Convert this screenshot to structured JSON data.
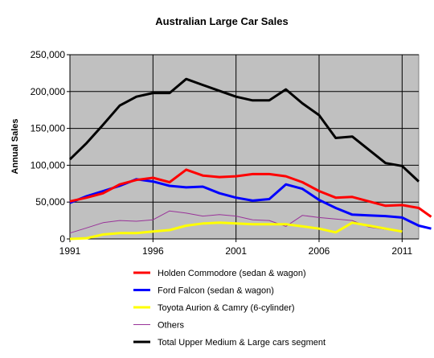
{
  "chart_data": {
    "type": "line",
    "title": "Australian Large Car Sales",
    "xlabel": "",
    "ylabel": "Annual Sales",
    "xlim": [
      1991,
      2012
    ],
    "ylim": [
      0,
      250000
    ],
    "x_ticks": [
      1991,
      1996,
      2001,
      2006,
      2011
    ],
    "y_ticks": [
      0,
      50000,
      100000,
      150000,
      200000,
      250000
    ],
    "x_tick_labels": [
      "1991",
      "1996",
      "2001",
      "2006",
      "2011"
    ],
    "y_tick_labels": [
      "0",
      "50,000",
      "100,000",
      "150,000",
      "200,000",
      "250,000"
    ],
    "grid": "horizontal",
    "plot_background": "#c0c0c0",
    "legend_position": "bottom",
    "series": [
      {
        "name": "Holden Commodore (sedan & wagon)",
        "color": "#ff0000",
        "points": [
          [
            1991,
            51000
          ],
          [
            1992,
            56000
          ],
          [
            1993,
            62000
          ],
          [
            1994,
            74000
          ],
          [
            1995,
            80000
          ],
          [
            1996,
            83000
          ],
          [
            1997,
            77000
          ],
          [
            1998,
            94000
          ],
          [
            1999,
            86000
          ],
          [
            2000,
            84000
          ],
          [
            2001,
            85000
          ],
          [
            2002,
            88000
          ],
          [
            2003,
            88000
          ],
          [
            2004,
            85000
          ],
          [
            2005,
            77000
          ],
          [
            2006,
            65000
          ],
          [
            2007,
            56000
          ],
          [
            2008,
            57000
          ],
          [
            2009,
            51000
          ],
          [
            2010,
            45000
          ],
          [
            2011,
            46000
          ],
          [
            2012,
            42000
          ],
          [
            2012.75,
            30000
          ]
        ]
      },
      {
        "name": "Ford Falcon (sedan & wagon)",
        "color": "#0000ff",
        "points": [
          [
            1991,
            49000
          ],
          [
            1992,
            58000
          ],
          [
            1993,
            65000
          ],
          [
            1994,
            72000
          ],
          [
            1995,
            81000
          ],
          [
            1996,
            78000
          ],
          [
            1997,
            72000
          ],
          [
            1998,
            70000
          ],
          [
            1999,
            71000
          ],
          [
            2000,
            62000
          ],
          [
            2001,
            56000
          ],
          [
            2002,
            52000
          ],
          [
            2003,
            54000
          ],
          [
            2004,
            74000
          ],
          [
            2005,
            68000
          ],
          [
            2006,
            53000
          ],
          [
            2007,
            42000
          ],
          [
            2008,
            33000
          ],
          [
            2009,
            32000
          ],
          [
            2010,
            31000
          ],
          [
            2011,
            29000
          ],
          [
            2012,
            18000
          ],
          [
            2012.75,
            14000
          ]
        ]
      },
      {
        "name": "Toyota Aurion & Camry (6-cylinder)",
        "color": "#ffff00",
        "points": [
          [
            1991,
            0
          ],
          [
            1992,
            1000
          ],
          [
            1993,
            6000
          ],
          [
            1994,
            8000
          ],
          [
            1995,
            8000
          ],
          [
            1996,
            10000
          ],
          [
            1997,
            12000
          ],
          [
            1998,
            18000
          ],
          [
            1999,
            21000
          ],
          [
            2000,
            22000
          ],
          [
            2001,
            21000
          ],
          [
            2002,
            20000
          ],
          [
            2003,
            20000
          ],
          [
            2004,
            20000
          ],
          [
            2005,
            17000
          ],
          [
            2006,
            14000
          ],
          [
            2007,
            9000
          ],
          [
            2008,
            22000
          ],
          [
            2009,
            18000
          ],
          [
            2010,
            14000
          ],
          [
            2011,
            10000
          ]
        ]
      },
      {
        "name": "Others",
        "color": "#993399",
        "points": [
          [
            1991,
            8000
          ],
          [
            1992,
            15000
          ],
          [
            1993,
            22000
          ],
          [
            1994,
            25000
          ],
          [
            1995,
            24000
          ],
          [
            1996,
            26000
          ],
          [
            1997,
            38000
          ],
          [
            1998,
            35000
          ],
          [
            1999,
            31000
          ],
          [
            2000,
            33000
          ],
          [
            2001,
            31000
          ],
          [
            2002,
            26000
          ],
          [
            2003,
            25000
          ],
          [
            2004,
            17000
          ],
          [
            2005,
            32000
          ],
          [
            2006,
            29000
          ],
          [
            2007,
            27000
          ],
          [
            2008,
            25000
          ],
          [
            2009,
            16000
          ],
          [
            2010,
            13000
          ],
          [
            2011,
            11000
          ]
        ]
      },
      {
        "name": "Total Upper Medium & Large cars segment",
        "color": "#000000",
        "points": [
          [
            1991,
            108000
          ],
          [
            1992,
            130000
          ],
          [
            1993,
            155000
          ],
          [
            1994,
            181000
          ],
          [
            1995,
            193000
          ],
          [
            1996,
            198000
          ],
          [
            1997,
            198000
          ],
          [
            1998,
            217000
          ],
          [
            1999,
            209000
          ],
          [
            2000,
            201000
          ],
          [
            2001,
            193000
          ],
          [
            2002,
            188000
          ],
          [
            2003,
            188000
          ],
          [
            2004,
            203000
          ],
          [
            2005,
            184000
          ],
          [
            2006,
            168000
          ],
          [
            2007,
            137000
          ],
          [
            2008,
            139000
          ],
          [
            2009,
            121000
          ],
          [
            2010,
            103000
          ],
          [
            2011,
            99000
          ],
          [
            2012,
            78000
          ]
        ]
      }
    ]
  }
}
